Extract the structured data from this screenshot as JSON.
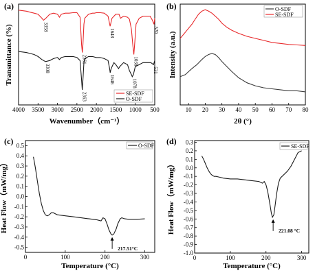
{
  "figure": {
    "panels": [
      "(a)",
      "(b)",
      "(c)",
      "(d)"
    ]
  },
  "chart_data": [
    {
      "panel": "(a)",
      "type": "line",
      "xlabel": "Wavenumber（cm⁻¹）",
      "ylabel": "Transmittance (%)",
      "xlim": [
        4000,
        500
      ],
      "x_ticks": [
        "4000",
        "3500",
        "3000",
        "2500",
        "2000",
        "1500",
        "1000",
        "500"
      ],
      "legend": "bottom-right",
      "series": [
        {
          "name": "SE-SDF",
          "color": "#e8292b",
          "x": [
            4000,
            3900,
            3800,
            3700,
            3600,
            3500,
            3400,
            3358,
            3300,
            3200,
            3100,
            3000,
            2950,
            2900,
            2800,
            2700,
            2600,
            2500,
            2420,
            2380,
            2361,
            2345,
            2320,
            2300,
            2200,
            2100,
            2050,
            2000,
            1900,
            1800,
            1700,
            1648,
            1600,
            1500,
            1420,
            1380,
            1300,
            1200,
            1150,
            1100,
            1060,
            1038,
            1010,
            980,
            900,
            800,
            700,
            620,
            560,
            520,
            500
          ],
          "y": [
            0.94,
            0.935,
            0.93,
            0.92,
            0.91,
            0.9,
            0.86,
            0.84,
            0.86,
            0.9,
            0.91,
            0.9,
            0.87,
            0.9,
            0.91,
            0.91,
            0.915,
            0.915,
            0.87,
            0.6,
            0.52,
            0.6,
            0.8,
            0.86,
            0.9,
            0.91,
            0.91,
            0.915,
            0.915,
            0.91,
            0.88,
            0.78,
            0.86,
            0.9,
            0.9,
            0.86,
            0.88,
            0.87,
            0.85,
            0.75,
            0.58,
            0.5,
            0.63,
            0.8,
            0.86,
            0.88,
            0.88,
            0.88,
            0.84,
            0.8,
            0.86
          ]
        },
        {
          "name": "O-SDF",
          "color": "#1a1a1a",
          "x": [
            4000,
            3900,
            3800,
            3700,
            3600,
            3500,
            3400,
            3308,
            3200,
            3100,
            3000,
            2950,
            2900,
            2800,
            2700,
            2600,
            2500,
            2420,
            2380,
            2363,
            2345,
            2320,
            2300,
            2200,
            2100,
            2000,
            1900,
            1800,
            1700,
            1660,
            1646,
            1620,
            1550,
            1500,
            1430,
            1400,
            1350,
            1300,
            1200,
            1150,
            1100,
            1078,
            1050,
            1000,
            900,
            800,
            700,
            600,
            531,
            500
          ],
          "y": [
            0.53,
            0.525,
            0.52,
            0.51,
            0.5,
            0.48,
            0.45,
            0.43,
            0.44,
            0.46,
            0.47,
            0.45,
            0.47,
            0.48,
            0.48,
            0.48,
            0.47,
            0.44,
            0.25,
            0.15,
            0.25,
            0.42,
            0.46,
            0.48,
            0.48,
            0.47,
            0.47,
            0.46,
            0.44,
            0.36,
            0.32,
            0.36,
            0.42,
            0.4,
            0.36,
            0.38,
            0.4,
            0.42,
            0.4,
            0.34,
            0.3,
            0.28,
            0.3,
            0.38,
            0.4,
            0.42,
            0.42,
            0.42,
            0.4,
            0.44
          ]
        }
      ],
      "peak_labels": [
        {
          "text": "3358",
          "x": 3358,
          "series": 0
        },
        {
          "text": "2361",
          "x": 2361,
          "series": 0
        },
        {
          "text": "1648",
          "x": 1648,
          "series": 0
        },
        {
          "text": "1038",
          "x": 1038,
          "series": 0
        },
        {
          "text": "520",
          "x": 520,
          "series": 0
        },
        {
          "text": "3308",
          "x": 3308,
          "series": 1
        },
        {
          "text": "2363",
          "x": 2363,
          "series": 1
        },
        {
          "text": "1646",
          "x": 1646,
          "series": 1
        },
        {
          "text": "1078",
          "x": 1078,
          "series": 1
        },
        {
          "text": "531",
          "x": 531,
          "series": 1
        }
      ]
    },
    {
      "panel": "(b)",
      "type": "line",
      "xlabel": "2θ (°)",
      "ylabel": "Intensity (a.u.)",
      "xlim": [
        5,
        80
      ],
      "x_ticks": [
        "10",
        "20",
        "30",
        "40",
        "50",
        "60",
        "70",
        "80"
      ],
      "legend": "top-right",
      "series": [
        {
          "name": "O-SDF",
          "color": "#3a3a3a",
          "x": [
            5,
            8,
            10,
            12,
            15,
            18,
            20,
            22,
            24,
            26,
            28,
            30,
            33,
            36,
            40,
            45,
            50,
            55,
            60,
            65,
            70,
            75,
            80
          ],
          "y": [
            0.28,
            0.3,
            0.33,
            0.36,
            0.4,
            0.45,
            0.48,
            0.5,
            0.51,
            0.5,
            0.47,
            0.43,
            0.38,
            0.33,
            0.27,
            0.22,
            0.19,
            0.17,
            0.16,
            0.15,
            0.14,
            0.14,
            0.13
          ]
        },
        {
          "name": "SE-SDF",
          "color": "#e8292b",
          "x": [
            5,
            8,
            10,
            12,
            14,
            16,
            18,
            20,
            22,
            24,
            26,
            28,
            30,
            33,
            36,
            40,
            45,
            50,
            55,
            60,
            65,
            70,
            75,
            80
          ],
          "y": [
            0.66,
            0.72,
            0.76,
            0.8,
            0.85,
            0.9,
            0.93,
            0.945,
            0.93,
            0.91,
            0.88,
            0.85,
            0.81,
            0.77,
            0.74,
            0.71,
            0.68,
            0.66,
            0.64,
            0.62,
            0.61,
            0.6,
            0.595,
            0.59
          ]
        }
      ]
    },
    {
      "panel": "(c)",
      "type": "line",
      "xlabel": "Temperature (°C)",
      "ylabel": "Heat Flow（mW/mg）",
      "xlim": [
        0,
        325
      ],
      "ylim": [
        -0.55,
        0.55
      ],
      "x_ticks": [
        0,
        100,
        200,
        300
      ],
      "y_ticks": [
        "-0.5",
        "-0.4",
        "-0.3",
        "-0.2",
        "-0.1",
        "0.0",
        "0.1",
        "0.2",
        "0.3",
        "0.4",
        "0.5"
      ],
      "y_tick_values": [
        -0.5,
        -0.4,
        -0.3,
        -0.2,
        -0.1,
        0.0,
        0.1,
        0.2,
        0.3,
        0.4,
        0.5
      ],
      "legend": "top-right",
      "series": [
        {
          "name": "O-SDF",
          "color": "#1a1a1a",
          "x": [
            20,
            25,
            30,
            35,
            40,
            45,
            50,
            55,
            60,
            65,
            70,
            75,
            80,
            90,
            100,
            120,
            140,
            160,
            180,
            190,
            195,
            200,
            205,
            210,
            215,
            218,
            222,
            228,
            232,
            238,
            242,
            250,
            260,
            280,
            300
          ],
          "y": [
            0.39,
            0.28,
            0.15,
            0.03,
            -0.07,
            -0.14,
            -0.18,
            -0.19,
            -0.18,
            -0.16,
            -0.16,
            -0.17,
            -0.18,
            -0.185,
            -0.19,
            -0.2,
            -0.21,
            -0.22,
            -0.23,
            -0.24,
            -0.21,
            -0.22,
            -0.27,
            -0.33,
            -0.37,
            -0.38,
            -0.37,
            -0.32,
            -0.27,
            -0.22,
            -0.21,
            -0.22,
            -0.225,
            -0.225,
            -0.22
          ]
        }
      ],
      "annotation": {
        "text": "217.51°C",
        "x": 218,
        "y": -0.38
      }
    },
    {
      "panel": "(d)",
      "type": "line",
      "xlabel": "Temperature (°C)",
      "ylabel": "Heat Flow（mW/mg）",
      "xlim": [
        0,
        320
      ],
      "ylim": [
        -1.0,
        0.32
      ],
      "x_ticks": [
        0,
        100,
        200,
        300
      ],
      "y_ticks": [
        "-1.0",
        "-0.9",
        "-0.8",
        "-0.7",
        "-0.6",
        "-0.5",
        "-0.4",
        "-0.3",
        "-0.2",
        "-0.1",
        "0.0",
        "0.1",
        "0.2",
        "0.3"
      ],
      "y_tick_values": [
        -1.0,
        -0.9,
        -0.8,
        -0.7,
        -0.6,
        -0.5,
        -0.4,
        -0.3,
        -0.2,
        -0.1,
        0.0,
        0.1,
        0.2,
        0.3
      ],
      "legend": "top-right",
      "series": [
        {
          "name": "SE-SDF",
          "color": "#1a1a1a",
          "x": [
            20,
            25,
            30,
            35,
            40,
            45,
            50,
            55,
            60,
            70,
            80,
            100,
            120,
            140,
            160,
            180,
            190,
            195,
            200,
            205,
            210,
            215,
            218,
            222,
            226,
            230,
            235,
            240,
            250,
            260,
            270,
            280,
            290,
            300
          ],
          "y": [
            0.14,
            0.1,
            0.05,
            0.0,
            -0.04,
            -0.07,
            -0.09,
            -0.1,
            -0.1,
            -0.11,
            -0.12,
            -0.13,
            -0.13,
            -0.14,
            -0.15,
            -0.16,
            -0.18,
            -0.16,
            -0.2,
            -0.28,
            -0.4,
            -0.53,
            -0.58,
            -0.55,
            -0.43,
            -0.3,
            -0.18,
            -0.12,
            -0.08,
            -0.04,
            0.02,
            0.1,
            0.18,
            0.2
          ]
        }
      ],
      "annotation": {
        "text": "221.08 °C",
        "x": 220,
        "y": -0.58
      }
    }
  ]
}
